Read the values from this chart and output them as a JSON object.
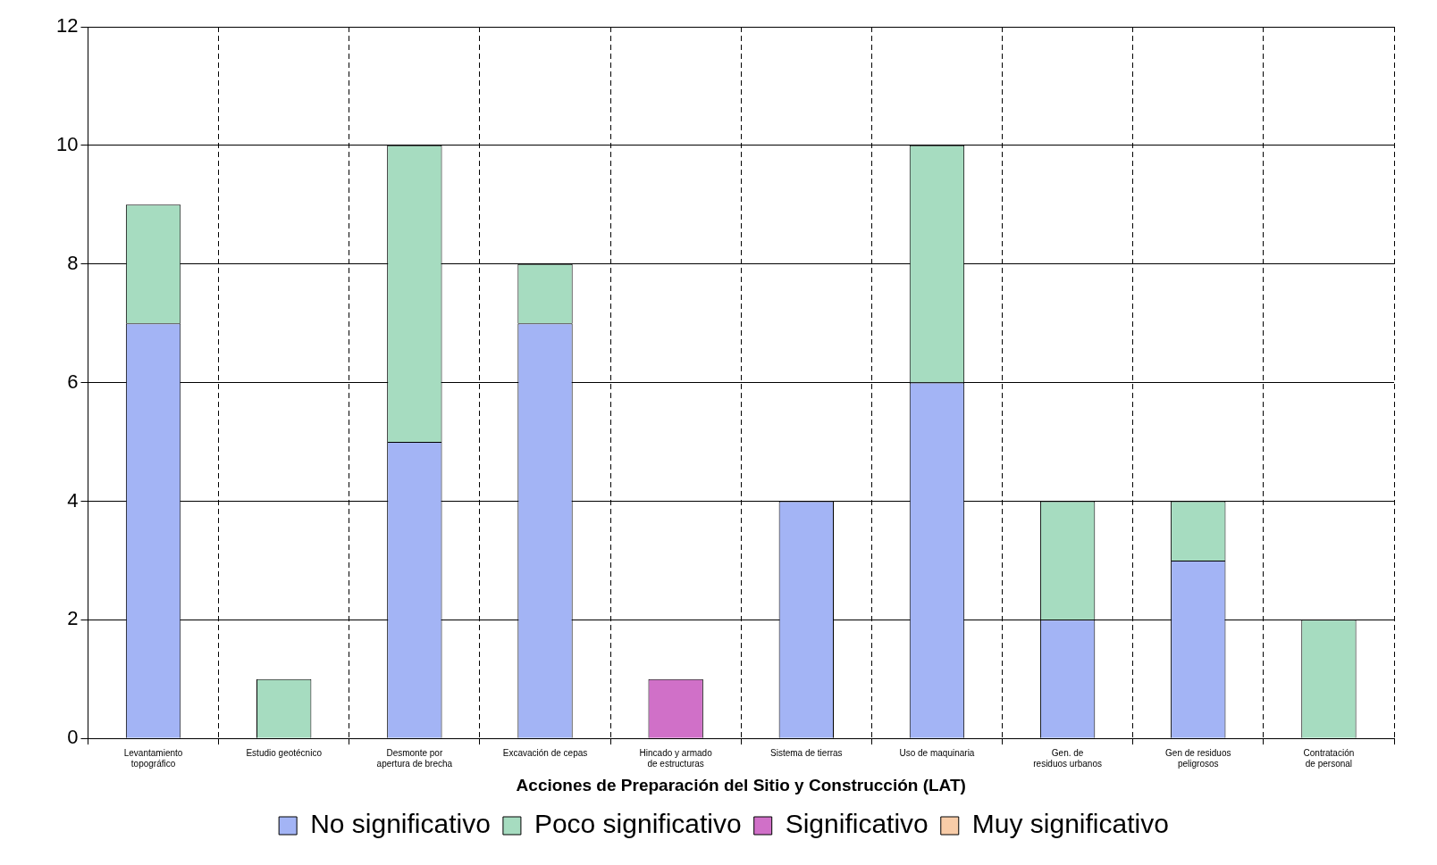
{
  "chart_data": {
    "type": "bar",
    "stacked": true,
    "xlabel": "Acciones de Preparación del Sitio y Construcción (LAT)",
    "categories": [
      "Levantamiento topográfico",
      "Estudio geotécnico",
      "Desmonte por apertura de brecha",
      "Excavación de cepas",
      "Hincado y armado de estructuras",
      "Sistema de tierras",
      "Uso de maquinaria",
      "Gen. de residuos urbanos",
      "Gen de residuos peligrosos",
      "Contratación de personal"
    ],
    "series": [
      {
        "name": "No significativo",
        "color": "#a3b4f5",
        "values": [
          7,
          0,
          5,
          7,
          0,
          4,
          6,
          2,
          3,
          0
        ]
      },
      {
        "name": "Poco significativo",
        "color": "#a6dcc0",
        "values": [
          2,
          1,
          5,
          1,
          0,
          0,
          4,
          2,
          1,
          2
        ]
      },
      {
        "name": "Significativo",
        "color": "#d070c8",
        "values": [
          0,
          0,
          0,
          0,
          1,
          0,
          0,
          0,
          0,
          0
        ]
      },
      {
        "name": "Muy significativo",
        "color": "#f8cca8",
        "values": [
          0,
          0,
          0,
          0,
          0,
          0,
          0,
          0,
          0,
          0
        ]
      }
    ],
    "ylim": [
      0,
      12
    ],
    "yticks": [
      0,
      2,
      4,
      6,
      8,
      10,
      12
    ],
    "grid": true,
    "legend": "bottom"
  }
}
